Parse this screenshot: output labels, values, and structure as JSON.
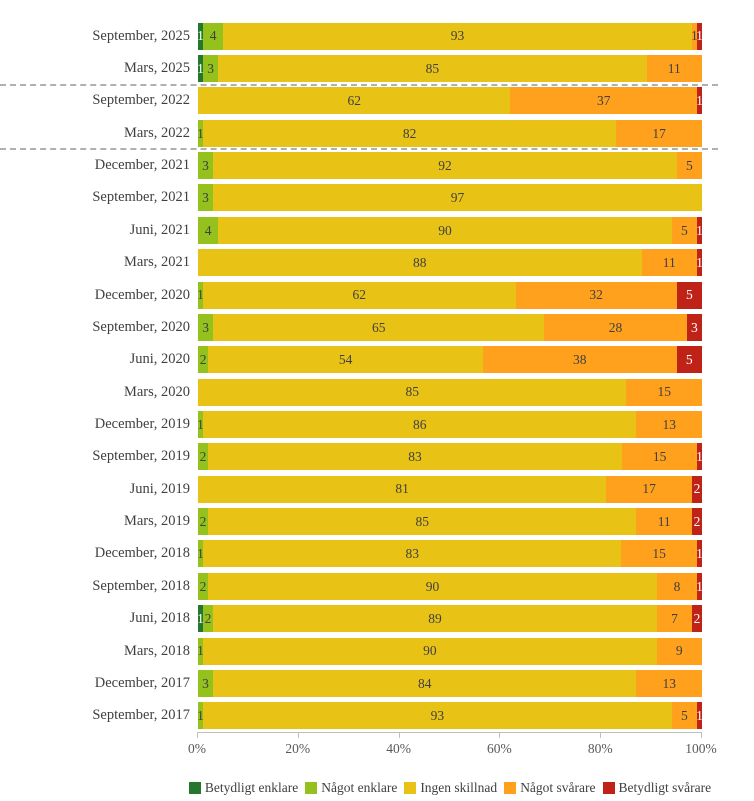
{
  "chart_data": {
    "type": "bar",
    "orientation": "horizontal",
    "stacked": true,
    "stack_total": 100,
    "title": "",
    "xlabel": "",
    "ylabel": "",
    "grid": false,
    "legend_position": "bottom",
    "categories": [
      "September, 2025",
      "Mars, 2025",
      "September, 2022",
      "Mars, 2022",
      "December, 2021",
      "September, 2021",
      "Juni, 2021",
      "Mars, 2021",
      "December, 2020",
      "September, 2020",
      "Juni, 2020",
      "Mars, 2020",
      "December, 2019",
      "September, 2019",
      "Juni, 2019",
      "Mars, 2019",
      "December, 2018",
      "September, 2018",
      "Juni, 2018",
      "Mars, 2018",
      "December, 2017",
      "September, 2017"
    ],
    "series": [
      {
        "name": "Betydligt enklare",
        "color": "#26772e",
        "label_color": "#ffffff",
        "values": [
          1,
          1,
          0,
          0,
          0,
          0,
          0,
          0,
          0,
          0,
          0,
          0,
          0,
          0,
          0,
          0,
          0,
          0,
          1,
          0,
          0,
          0
        ]
      },
      {
        "name": "Något enklare",
        "color": "#94c11c",
        "label_color": "#404040",
        "values": [
          4,
          3,
          0,
          1,
          3,
          3,
          4,
          0,
          1,
          3,
          2,
          0,
          1,
          2,
          0,
          2,
          1,
          2,
          2,
          1,
          3,
          1
        ]
      },
      {
        "name": "Ingen skillnad",
        "color": "#e8c215",
        "label_color": "#404040",
        "values": [
          93,
          85,
          62,
          82,
          92,
          97,
          90,
          88,
          62,
          65,
          54,
          85,
          86,
          83,
          81,
          85,
          83,
          90,
          89,
          90,
          84,
          93
        ]
      },
      {
        "name": "Något svårare",
        "color": "#ffa11d",
        "label_color": "#404040",
        "values": [
          1,
          11,
          37,
          17,
          5,
          0,
          5,
          11,
          32,
          28,
          38,
          15,
          13,
          15,
          17,
          11,
          15,
          8,
          7,
          9,
          13,
          5
        ]
      },
      {
        "name": "Betydligt svårare",
        "color": "#bf2318",
        "label_color": "#ffffff",
        "values": [
          1,
          0,
          1,
          0,
          0,
          0,
          1,
          1,
          5,
          3,
          5,
          0,
          0,
          1,
          2,
          2,
          1,
          1,
          2,
          0,
          0,
          1
        ]
      }
    ],
    "x_axis": {
      "min": 0,
      "max": 100,
      "ticks": [
        "0%",
        "20%",
        "40%",
        "60%",
        "80%",
        "100%"
      ]
    },
    "separator_after_indices": [
      1,
      3
    ],
    "legend": [
      "Betydligt enklare",
      "Något enklare",
      "Ingen skillnad",
      "Något svårare",
      "Betydligt svårare"
    ]
  },
  "colors": {
    "axis_line": "#bfbfbf",
    "axis_text": "#595959",
    "category_text": "#3f3f3f",
    "separator": "#b0b0b0",
    "background": "#ffffff"
  }
}
